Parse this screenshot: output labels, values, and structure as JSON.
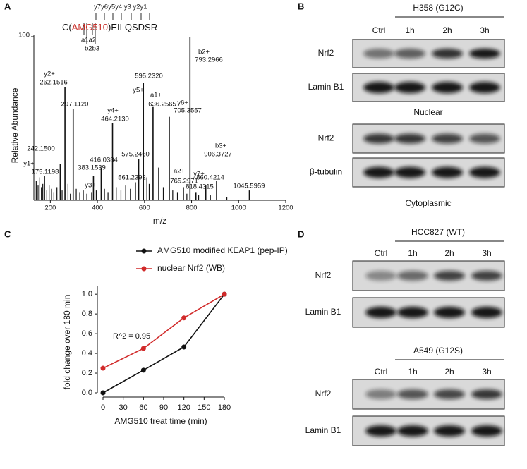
{
  "panel_labels": [
    "A",
    "B",
    "C",
    "D"
  ],
  "chart_data": [
    {
      "type": "spectrum",
      "sequence": [
        {
          "text": "C(",
          "color": "#111111"
        },
        {
          "text": "AMG510",
          "color": "#c8302a"
        },
        {
          "text": ")EILQSDSR",
          "color": "#111111"
        }
      ],
      "y_ions": "y7y6y5y4 y3 y2y1",
      "a_ions": "a1a2",
      "b_ions": "b2b3",
      "xlabel": "m/z",
      "ylabel": "Relative Abundance",
      "xlim": [
        130,
        1200
      ],
      "xticks": [
        200,
        400,
        600,
        800,
        1000,
        1200
      ],
      "ylim": [
        0,
        100
      ],
      "yticks": [
        100
      ],
      "color": "#111111",
      "peaks": [
        {
          "x": 175.1198,
          "value": 15,
          "label": "175.1198",
          "ion": "y1+",
          "ion_color": "#c8302a"
        },
        {
          "x": 242.15,
          "value": 22,
          "label": "242.1500"
        },
        {
          "x": 262.1516,
          "value": 69,
          "label": "262.1516",
          "ion": "y2+",
          "ion_color": "#c8302a"
        },
        {
          "x": 297.112,
          "value": 56,
          "label": "297.1120"
        },
        {
          "x": 376,
          "value": 5,
          "ion": "y3+",
          "ion_color": "#c8302a"
        },
        {
          "x": 383.1539,
          "value": 15,
          "label": "383.1539"
        },
        {
          "x": 416.0384,
          "value": 20,
          "label": "416.0384"
        },
        {
          "x": 464.213,
          "value": 47,
          "label": "464.2130",
          "ion": "y4+",
          "ion_color": "#c8302a"
        },
        {
          "x": 561.2392,
          "value": 11,
          "label": "561.2392"
        },
        {
          "x": 575.246,
          "value": 25,
          "label": "575.2460"
        },
        {
          "x": 595.232,
          "value": 72,
          "label": "595.2320",
          "ion": "y5+",
          "ion_color": "#c8302a"
        },
        {
          "x": 636.2565,
          "value": 57,
          "label": "636.2565",
          "ion": "a1+",
          "ion_color": "#2b3a8f"
        },
        {
          "x": 705.3557,
          "value": 51,
          "label": "705.3557",
          "ion": "y6+",
          "ion_color": "#c8302a"
        },
        {
          "x": 765.2971,
          "value": 8,
          "label": "765.2971",
          "ion": "a2+",
          "ion_color": "#2b3a8f"
        },
        {
          "x": 793.2966,
          "value": 100,
          "label": "793.2966",
          "ion": "b2+",
          "ion_color": "#2b3a8f"
        },
        {
          "x": 818.4315,
          "value": 5,
          "label": "818.4315",
          "ion": "y7+",
          "ion_color": "#c8302a"
        },
        {
          "x": 860.4214,
          "value": 9,
          "label": "860.4214"
        },
        {
          "x": 906.3727,
          "value": 12,
          "label": "906.3727",
          "ion": "b3+",
          "ion_color": "#2b3a8f"
        },
        {
          "x": 1045.5959,
          "value": 6,
          "label": "1045.5959"
        }
      ],
      "minor_peaks": {
        "x": [
          140,
          148,
          155,
          162,
          168,
          185,
          195,
          205,
          215,
          228,
          250,
          275,
          285,
          310,
          325,
          340,
          355,
          395,
          430,
          445,
          480,
          500,
          520,
          540,
          610,
          620,
          660,
          680,
          720,
          740,
          780,
          830,
          880,
          950
        ],
        "values": [
          12,
          9,
          14,
          8,
          10,
          6,
          9,
          7,
          5,
          8,
          6,
          10,
          4,
          7,
          5,
          6,
          4,
          6,
          7,
          5,
          8,
          6,
          9,
          7,
          14,
          10,
          20,
          8,
          6,
          5,
          4,
          3,
          3,
          2
        ]
      }
    },
    {
      "type": "line",
      "xlabel": "AMG510 treat time (min)",
      "ylabel": "fold change over 180 min",
      "annotation": "R^2 = 0.95",
      "x": [
        0,
        60,
        120,
        180
      ],
      "xlim": [
        0,
        180
      ],
      "xticks": [
        0,
        30,
        60,
        90,
        120,
        150,
        180
      ],
      "ylim": [
        0,
        1.08
      ],
      "yticks": [
        {
          "value": 0,
          "label": "0.0"
        },
        0.2,
        0.4,
        0.6,
        0.8,
        {
          "value": 1,
          "label": "1.0"
        }
      ],
      "series": [
        {
          "name": "AMG510 modified KEAP1 (pep-IP)",
          "color": "#111111",
          "values": [
            0,
            0.23,
            0.465,
            1.0
          ]
        },
        {
          "name": "nuclear Nrf2 (WB)",
          "color": "#d12a2a",
          "values": [
            0.25,
            0.45,
            0.76,
            1.0
          ]
        }
      ]
    }
  ],
  "blots": [
    {
      "sections": [
        {
          "title": "H358 (G12C)",
          "lanes": [
            "Ctrl",
            "1h",
            "2h",
            "3h"
          ],
          "rows": [
            "Nrf2",
            "Lamin B1"
          ],
          "caption": "Nuclear"
        },
        {
          "rows": [
            "Nrf2",
            "β-tubulin"
          ],
          "caption": "Cytoplasmic"
        }
      ]
    },
    {
      "sections": [
        {
          "title": "HCC827 (WT)",
          "lanes": [
            "Ctrl",
            "1h",
            "2h",
            "3h"
          ],
          "rows": [
            "Nrf2",
            "Lamin B1"
          ]
        },
        {
          "title": "A549 (G12S)",
          "lanes": [
            "Ctrl",
            "1h",
            "2h",
            "3h"
          ],
          "rows": [
            "Nrf2",
            "Lamin B1"
          ]
        }
      ]
    }
  ]
}
